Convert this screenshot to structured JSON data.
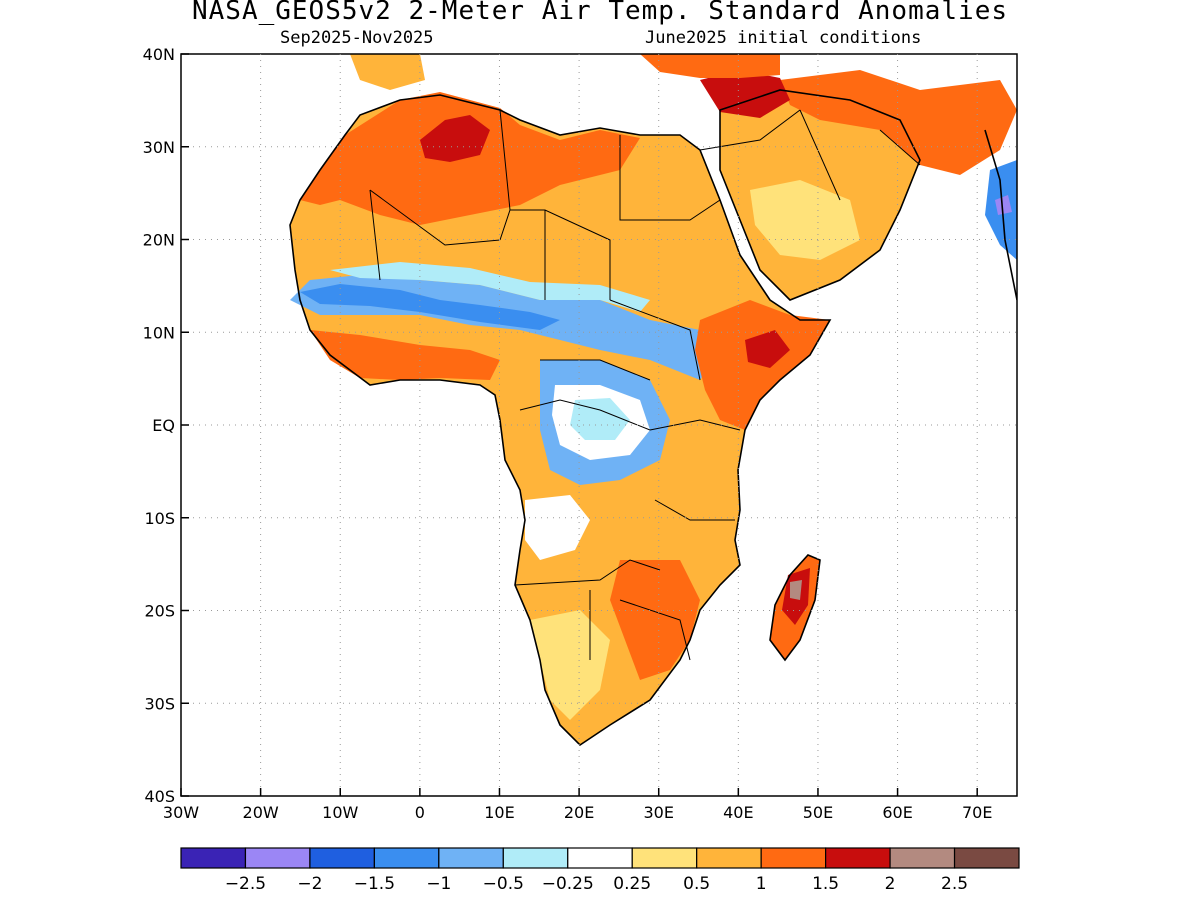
{
  "title": "NASA_GEOS5v2 2-Meter Air Temp. Standard Anomalies",
  "subtitle_left": "Sep2025-Nov2025",
  "subtitle_right": "June2025 initial conditions",
  "map": {
    "lon_range": [
      -30,
      75
    ],
    "lat_range": [
      -40,
      40
    ],
    "grid": "dotted",
    "x_ticks": [
      {
        "value": -30,
        "label": "30W"
      },
      {
        "value": -20,
        "label": "20W"
      },
      {
        "value": -10,
        "label": "10W"
      },
      {
        "value": 0,
        "label": "0"
      },
      {
        "value": 10,
        "label": "10E"
      },
      {
        "value": 20,
        "label": "20E"
      },
      {
        "value": 30,
        "label": "30E"
      },
      {
        "value": 40,
        "label": "40E"
      },
      {
        "value": 50,
        "label": "50E"
      },
      {
        "value": 60,
        "label": "60E"
      },
      {
        "value": 70,
        "label": "70E"
      }
    ],
    "y_ticks": [
      {
        "value": 40,
        "label": "40N"
      },
      {
        "value": 30,
        "label": "30N"
      },
      {
        "value": 20,
        "label": "20N"
      },
      {
        "value": 10,
        "label": "10N"
      },
      {
        "value": 0,
        "label": "EQ"
      },
      {
        "value": -10,
        "label": "10S"
      },
      {
        "value": -20,
        "label": "20S"
      },
      {
        "value": -30,
        "label": "30S"
      },
      {
        "value": -40,
        "label": "40S"
      }
    ]
  },
  "colorbar": {
    "colors": [
      "#3a23b5",
      "#9b86f5",
      "#1f5fe0",
      "#3a8ef0",
      "#6fb2f5",
      "#b0ecf8",
      "#ffffff",
      "#ffe27a",
      "#ffb43a",
      "#ff6a12",
      "#c80d0d",
      "#b38a80",
      "#7a4a42"
    ],
    "labels": [
      "-2.5",
      "-2",
      "-1.5",
      "-1",
      "-0.5",
      "-0.25",
      "0.25",
      "0.5",
      "1",
      "1.5",
      "2",
      "2.5"
    ]
  },
  "regions": [
    {
      "name": "north-africa-sahara",
      "anomaly_class": 1.5
    },
    {
      "name": "algeria-core",
      "anomaly_class": 2
    },
    {
      "name": "sahel-band",
      "anomaly_class": -1
    },
    {
      "name": "arabian-peninsula",
      "anomaly_class": 0.5
    },
    {
      "name": "turkey-iraq",
      "anomaly_class": 2
    },
    {
      "name": "central-africa",
      "anomaly_class": -0.5
    },
    {
      "name": "east-africa-horn",
      "anomaly_class": 1.5
    },
    {
      "name": "southern-africa",
      "anomaly_class": 1
    },
    {
      "name": "madagascar",
      "anomaly_class": 2
    }
  ]
}
